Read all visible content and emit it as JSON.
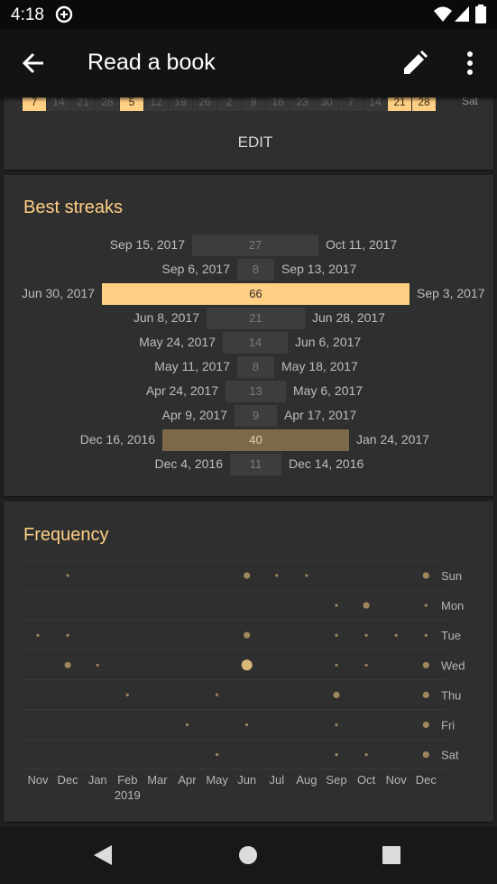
{
  "status_bar": {
    "time": "4:18"
  },
  "app_bar": {
    "title": "Read a book",
    "back_icon": "arrow-back-icon",
    "edit_icon": "pencil-icon",
    "menu_icon": "more-vert-icon"
  },
  "history": {
    "days": [
      {
        "v": "7",
        "on": true
      },
      {
        "v": "14",
        "on": false
      },
      {
        "v": "21",
        "on": false
      },
      {
        "v": "28",
        "on": false
      },
      {
        "v": "5",
        "on": true
      },
      {
        "v": "12",
        "on": false
      },
      {
        "v": "19",
        "on": false
      },
      {
        "v": "26",
        "on": false
      },
      {
        "v": "2",
        "on": false
      },
      {
        "v": "9",
        "on": false
      },
      {
        "v": "16",
        "on": false
      },
      {
        "v": "23",
        "on": false
      },
      {
        "v": "30",
        "on": false
      },
      {
        "v": "7",
        "on": false
      },
      {
        "v": "14",
        "on": false
      },
      {
        "v": "21",
        "on": true
      },
      {
        "v": "28",
        "on": true
      }
    ],
    "weekday_label": "Sat",
    "edit_label": "EDIT"
  },
  "best_streaks": {
    "title": "Best streaks",
    "items": [
      {
        "start": "Sep 15, 2017",
        "end": "Oct 11, 2017",
        "length": 27,
        "best": false,
        "highlight": false
      },
      {
        "start": "Sep 6, 2017",
        "end": "Sep 13, 2017",
        "length": 8,
        "best": false,
        "highlight": false
      },
      {
        "start": "Jun 30, 2017",
        "end": "Sep 3, 2017",
        "length": 66,
        "best": true,
        "highlight": false
      },
      {
        "start": "Jun 8, 2017",
        "end": "Jun 28, 2017",
        "length": 21,
        "best": false,
        "highlight": false
      },
      {
        "start": "May 24, 2017",
        "end": "Jun 6, 2017",
        "length": 14,
        "best": false,
        "highlight": false
      },
      {
        "start": "May 11, 2017",
        "end": "May 18, 2017",
        "length": 8,
        "best": false,
        "highlight": false
      },
      {
        "start": "Apr 24, 2017",
        "end": "May 6, 2017",
        "length": 13,
        "best": false,
        "highlight": false
      },
      {
        "start": "Apr 9, 2017",
        "end": "Apr 17, 2017",
        "length": 9,
        "best": false,
        "highlight": false
      },
      {
        "start": "Dec 16, 2016",
        "end": "Jan 24, 2017",
        "length": 40,
        "best": false,
        "highlight": true
      },
      {
        "start": "Dec 4, 2016",
        "end": "Dec 14, 2016",
        "length": 11,
        "best": false,
        "highlight": false
      }
    ]
  },
  "frequency": {
    "title": "Frequency",
    "days": [
      "Sun",
      "Mon",
      "Tue",
      "Wed",
      "Thu",
      "Fri",
      "Sat"
    ],
    "months": [
      "Nov",
      "Dec",
      "Jan",
      "Feb",
      "Mar",
      "Apr",
      "May",
      "Jun",
      "Jul",
      "Aug",
      "Sep",
      "Oct",
      "Nov",
      "Dec"
    ],
    "year_label": "2019",
    "year_under_month_index": 3,
    "dot_size_levels": {
      "Sun": [
        0,
        1,
        0,
        0,
        0,
        0,
        0,
        2,
        1,
        1,
        0,
        0,
        0,
        2
      ],
      "Mon": [
        0,
        0,
        0,
        0,
        0,
        0,
        0,
        0,
        0,
        0,
        1,
        2,
        0,
        1
      ],
      "Tue": [
        1,
        1,
        0,
        0,
        0,
        0,
        0,
        2,
        0,
        0,
        1,
        1,
        1,
        1
      ],
      "Wed": [
        0,
        2,
        1,
        0,
        0,
        0,
        0,
        3,
        0,
        0,
        1,
        1,
        0,
        2
      ],
      "Thu": [
        0,
        0,
        0,
        1,
        0,
        0,
        1,
        0,
        0,
        0,
        2,
        0,
        0,
        2
      ],
      "Fri": [
        0,
        0,
        0,
        0,
        0,
        1,
        0,
        1,
        0,
        0,
        1,
        0,
        0,
        2
      ],
      "Sat": [
        0,
        0,
        0,
        0,
        0,
        0,
        1,
        0,
        0,
        0,
        1,
        1,
        0,
        2
      ]
    }
  },
  "colors": {
    "accent": "#ffcf84",
    "accent_dim": "#7d6848",
    "card_bg": "#2f2f2f",
    "bar_bg": "#3d3d3d"
  },
  "nav_bar": {
    "back_icon": "triangle-back-icon",
    "home_icon": "circle-home-icon",
    "recents_icon": "square-recents-icon"
  }
}
